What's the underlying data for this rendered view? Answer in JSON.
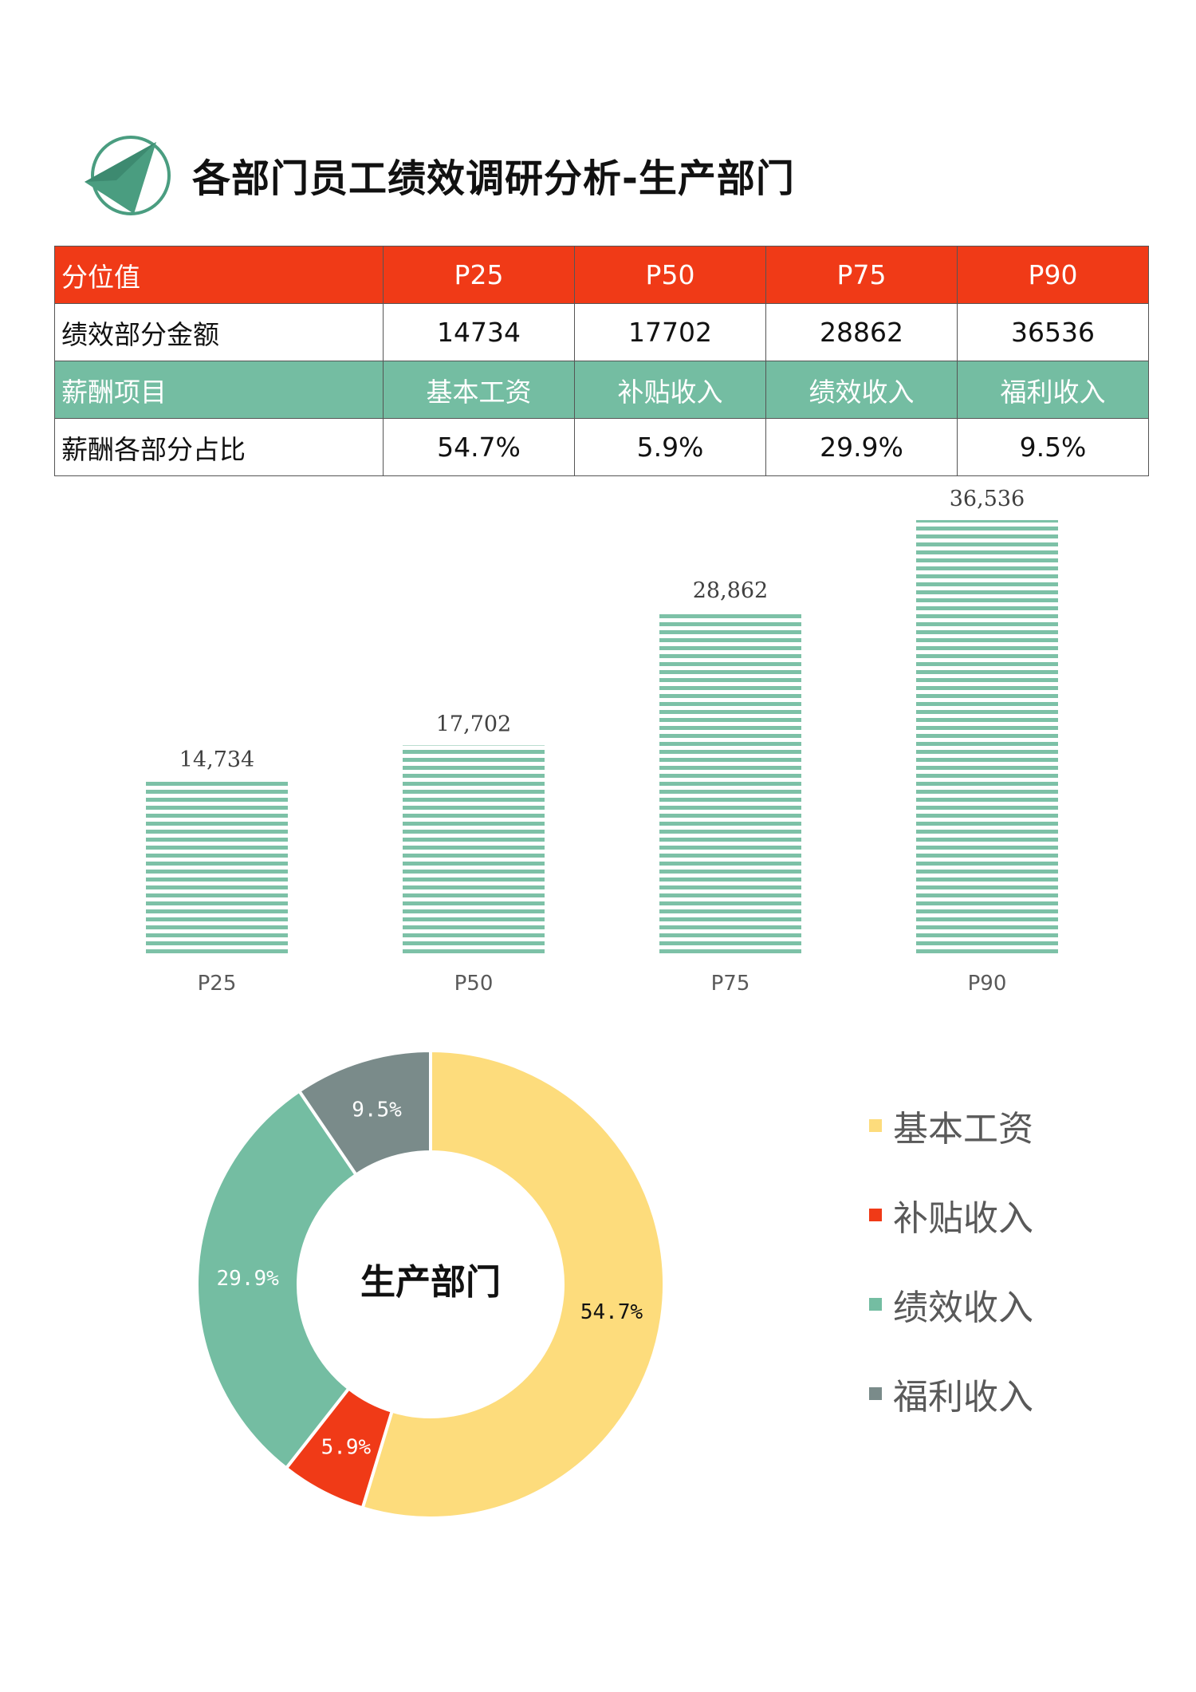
{
  "header": {
    "title": "各部门员工绩效调研分析-生产部门",
    "logo_icon": "triangle-circle-icon"
  },
  "table": {
    "rows": [
      {
        "style": "red",
        "head": "分位值",
        "cells": [
          "P25",
          "P50",
          "P75",
          "P90"
        ]
      },
      {
        "style": "white",
        "head": "绩效部分金额",
        "cells": [
          "14734",
          "17702",
          "28862",
          "36536"
        ]
      },
      {
        "style": "green",
        "head": "薪酬项目",
        "cells": [
          "基本工资",
          "补贴收入",
          "绩效收入",
          "福利收入"
        ]
      },
      {
        "style": "white",
        "head": "薪酬各部分占比",
        "cells": [
          "54.7%",
          "5.9%",
          "29.9%",
          "9.5%"
        ]
      }
    ]
  },
  "colors": {
    "red": "#f03a17",
    "green": "#74bda2",
    "yellow": "#fddc7c",
    "gray": "#7a8b8a",
    "bar_stripe": "#7dc1a7"
  },
  "chart_data": [
    {
      "type": "bar",
      "categories": [
        "P25",
        "P50",
        "P75",
        "P90"
      ],
      "values": [
        14734,
        17702,
        28862,
        36536
      ],
      "data_labels": [
        "14,734",
        "17,702",
        "28,862",
        "36,536"
      ],
      "ylim": [
        0,
        40000
      ],
      "fill": "horizontal-stripes",
      "grid": false,
      "title": "",
      "xlabel": "",
      "ylabel": ""
    },
    {
      "type": "pie",
      "style": "donut",
      "center_label": "生产部门",
      "legend_position": "right",
      "slices": [
        {
          "name": "基本工资",
          "value": 54.7,
          "label": "54.7%",
          "color": "#fddc7c"
        },
        {
          "name": "补贴收入",
          "value": 5.9,
          "label": "5.9%",
          "color": "#f03a17"
        },
        {
          "name": "绩效收入",
          "value": 29.9,
          "label": "29.9%",
          "color": "#74bda2"
        },
        {
          "name": "福利收入",
          "value": 9.5,
          "label": "9.5%",
          "color": "#7a8b8a"
        }
      ]
    }
  ]
}
